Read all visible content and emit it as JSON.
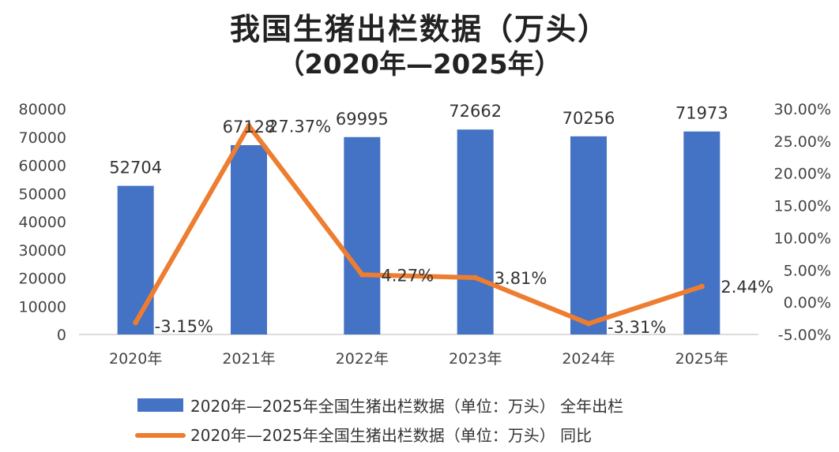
{
  "chart_data": {
    "type": "bar+line",
    "title": "我国生猪出栏数据（万头）",
    "subtitle": "（2020年—2025年）",
    "categories": [
      "2020年",
      "2021年",
      "2022年",
      "2023年",
      "2024年",
      "2025年"
    ],
    "series": [
      {
        "name": "2020年—2025年全国生猪出栏数据（单位：万头） 全年出栏",
        "type": "bar",
        "axis": "left",
        "color": "#4472C4",
        "values": [
          52704,
          67128,
          69995,
          72662,
          70256,
          71973
        ],
        "labels": [
          "52704",
          "67128",
          "69995",
          "72662",
          "70256",
          "71973"
        ]
      },
      {
        "name": "2020年—2025年全国生猪出栏数据（单位：万头） 同比",
        "type": "line",
        "axis": "right",
        "color": "#ED7D31",
        "values": [
          -3.15,
          27.37,
          4.27,
          3.81,
          -3.31,
          2.44
        ],
        "labels": [
          "-3.15%",
          "27.37%",
          "4.27%",
          "3.81%",
          "-3.31%",
          "2.44%"
        ]
      }
    ],
    "left_axis": {
      "range": [
        0,
        80000
      ],
      "ticks": [
        "0",
        "10000",
        "20000",
        "30000",
        "40000",
        "50000",
        "60000",
        "70000",
        "80000"
      ]
    },
    "right_axis": {
      "range": [
        -5,
        30
      ],
      "ticks": [
        "-5.00%",
        "0.00%",
        "5.00%",
        "10.00%",
        "15.00%",
        "20.00%",
        "25.00%",
        "30.00%"
      ]
    },
    "legend_position": "bottom",
    "grid": false
  }
}
